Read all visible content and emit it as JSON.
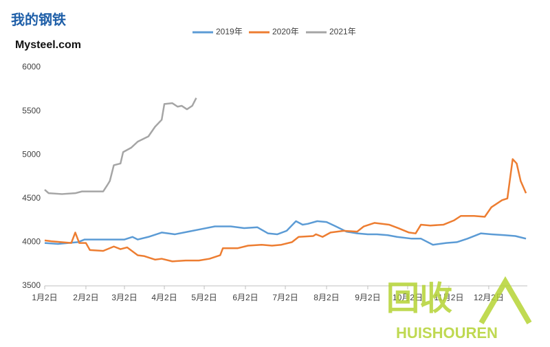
{
  "chart_data": {
    "type": "line",
    "logo": "我的钢铁",
    "brand": "Mysteel.com",
    "watermark": "回收",
    "watermark_brand": "HUISHOUREN",
    "xlim": [
      0,
      363
    ],
    "ylim": [
      3500,
      6000
    ],
    "yticks": [
      3500,
      4000,
      4500,
      5000,
      5500,
      6000
    ],
    "xticks": [
      {
        "value": 0,
        "label": "1月2日"
      },
      {
        "value": 31,
        "label": "2月2日"
      },
      {
        "value": 60,
        "label": "3月2日"
      },
      {
        "value": 90,
        "label": "4月2日"
      },
      {
        "value": 120,
        "label": "5月2日"
      },
      {
        "value": 151,
        "label": "6月2日"
      },
      {
        "value": 181,
        "label": "7月2日"
      },
      {
        "value": 212,
        "label": "8月2日"
      },
      {
        "value": 243,
        "label": "9月2日"
      },
      {
        "value": 273,
        "label": "10月2日"
      },
      {
        "value": 304,
        "label": "11月2日"
      },
      {
        "value": 334,
        "label": "12月2日"
      }
    ],
    "grid": false,
    "legend": "top",
    "series": [
      {
        "name": "2019年",
        "color": "#5b9bd5",
        "x": [
          0,
          10,
          25,
          30,
          60,
          66,
          70,
          78,
          88,
          98,
          108,
          118,
          128,
          140,
          150,
          160,
          168,
          175,
          182,
          189,
          194,
          198,
          205,
          212,
          219,
          227,
          235,
          243,
          250,
          258,
          265,
          276,
          283,
          292,
          302,
          310,
          318,
          328,
          336,
          346,
          354,
          362
        ],
        "values": [
          3990,
          3980,
          4000,
          4030,
          4030,
          4060,
          4030,
          4060,
          4110,
          4090,
          4120,
          4150,
          4180,
          4180,
          4160,
          4170,
          4100,
          4090,
          4130,
          4240,
          4200,
          4210,
          4240,
          4230,
          4180,
          4120,
          4100,
          4090,
          4090,
          4080,
          4060,
          4040,
          4040,
          3970,
          3990,
          4000,
          4040,
          4100,
          4090,
          4080,
          4070,
          4040
        ]
      },
      {
        "name": "2020年",
        "color": "#ed7d31",
        "x": [
          0,
          5,
          20,
          23,
          26,
          31,
          34,
          44,
          52,
          57,
          62,
          70,
          75,
          83,
          88,
          96,
          106,
          116,
          124,
          132,
          134,
          145,
          153,
          163,
          171,
          178,
          186,
          191,
          202,
          204,
          209,
          215,
          225,
          235,
          240,
          248,
          259,
          266,
          274,
          279,
          283,
          290,
          300,
          308,
          313,
          323,
          331,
          336,
          344,
          348,
          352,
          355,
          358,
          362
        ],
        "values": [
          4020,
          4010,
          3990,
          4110,
          3990,
          3990,
          3910,
          3900,
          3950,
          3920,
          3940,
          3850,
          3840,
          3800,
          3810,
          3780,
          3790,
          3790,
          3810,
          3850,
          3930,
          3930,
          3960,
          3970,
          3960,
          3970,
          4000,
          4060,
          4070,
          4090,
          4060,
          4110,
          4130,
          4120,
          4180,
          4220,
          4200,
          4160,
          4110,
          4100,
          4200,
          4190,
          4200,
          4250,
          4300,
          4300,
          4290,
          4400,
          4480,
          4500,
          4950,
          4900,
          4700,
          4560
        ]
      },
      {
        "name": "2021年",
        "color": "#a5a5a5",
        "x": [
          0,
          3,
          13,
          23,
          28,
          44,
          47,
          49,
          52,
          57,
          59,
          65,
          70,
          78,
          83,
          88,
          90,
          96,
          100,
          103,
          107,
          111,
          114
        ],
        "values": [
          4600,
          4560,
          4550,
          4560,
          4580,
          4580,
          4650,
          4700,
          4880,
          4900,
          5030,
          5080,
          5150,
          5210,
          5320,
          5400,
          5580,
          5590,
          5550,
          5560,
          5520,
          5560,
          5650
        ]
      }
    ]
  }
}
